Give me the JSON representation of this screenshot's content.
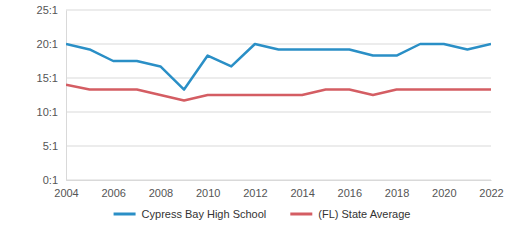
{
  "chart_data": {
    "type": "line",
    "x": [
      2004,
      2005,
      2006,
      2007,
      2008,
      2009,
      2010,
      2011,
      2012,
      2013,
      2014,
      2015,
      2016,
      2017,
      2018,
      2019,
      2020,
      2021,
      2022
    ],
    "series": [
      {
        "name": "Cypress Bay High School",
        "color": "#2a8fc6",
        "values": [
          20,
          19.2,
          17.5,
          17.5,
          16.7,
          13.3,
          18.3,
          16.7,
          20,
          19.2,
          19.2,
          19.2,
          19.2,
          18.3,
          18.3,
          20,
          20,
          19.2,
          20
        ]
      },
      {
        "name": "(FL) State Average",
        "color": "#d45d63",
        "values": [
          14,
          13.3,
          13.3,
          13.3,
          12.5,
          11.7,
          12.5,
          12.5,
          12.5,
          12.5,
          12.5,
          13.3,
          13.3,
          12.5,
          13.3,
          13.3,
          13.3,
          13.3,
          13.3
        ]
      }
    ],
    "xlim": [
      2004,
      2022
    ],
    "xticks": [
      2004,
      2006,
      2008,
      2010,
      2012,
      2014,
      2016,
      2018,
      2020,
      2022
    ],
    "ylim": [
      0,
      25
    ],
    "yticks": [
      {
        "value": 0,
        "label": "0:1"
      },
      {
        "value": 5,
        "label": "5:1"
      },
      {
        "value": 10,
        "label": "10:1"
      },
      {
        "value": 15,
        "label": "15:1"
      },
      {
        "value": 20,
        "label": "20:1"
      },
      {
        "value": 25,
        "label": "25:1"
      }
    ],
    "grid": true,
    "legend": "bottom"
  }
}
